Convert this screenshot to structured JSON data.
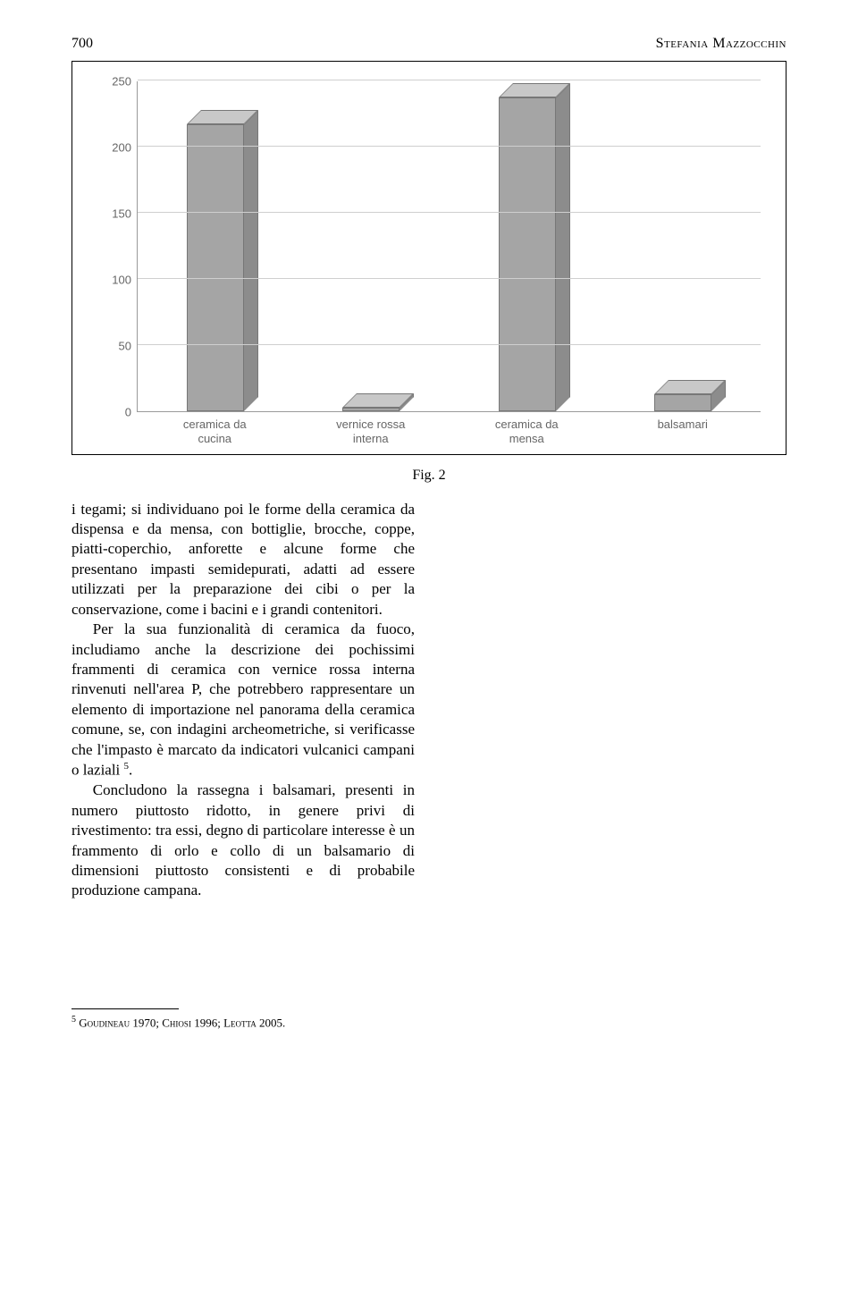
{
  "header": {
    "page_number": "700",
    "author": "Stefania Mazzocchin"
  },
  "chart": {
    "type": "bar",
    "ylim_max": 250,
    "ytick_step": 50,
    "yticks": [
      0,
      50,
      100,
      150,
      200,
      250
    ],
    "categories": [
      "ceramica da\ncucina",
      "vernice rossa\ninterna",
      "ceramica da\nmensa",
      "balsamari"
    ],
    "values": [
      217,
      3,
      237,
      13
    ],
    "bar_color": "#a5a5a5",
    "bar_side_color": "#8c8c8c",
    "bar_top_color": "#c8c8c8",
    "grid_color": "#cfcfcf",
    "axis_color": "#9a9a9a",
    "text_color": "#666666",
    "label_font": "Verdana",
    "label_fontsize": 13
  },
  "caption": "Fig. 2",
  "paragraphs": {
    "p1": "i tegami; si individuano poi le forme della ceramica da dispensa e da mensa, con bottiglie, brocche, coppe, piatti-coperchio, anforette e alcune forme che presentano impasti semidepurati, adatti ad essere utilizzati per la preparazione dei cibi o per la conservazione, come i bacini e i grandi contenitori.",
    "p2a": "Per la sua funzionalità di ceramica da fuoco, includiamo anche la descrizione dei pochissimi frammenti di ceramica con vernice rossa interna rinvenuti nell'area P, che potrebbero rappresentare un elemento di importazione nel panorama della ceramica comune, se, con indagini archeometriche, si verificasse che l'impasto è marcato da indicatori vulcanici campani o laziali ",
    "p2_fn": "5",
    "p2b": ".",
    "p3": "Concludono la rassegna i balsamari, presenti in numero piuttosto ridotto, in genere privi di rivestimento: tra essi, degno di particolare interesse è un frammento di orlo e collo di un balsamario di dimensioni piuttosto consistenti e di probabile produzione campana."
  },
  "footnote": {
    "marker": "5",
    "text_a": "Goudineau",
    "text_b": " 1970; ",
    "text_c": "Chiosi",
    "text_d": " 1996; ",
    "text_e": "Leotta",
    "text_f": " 2005."
  }
}
